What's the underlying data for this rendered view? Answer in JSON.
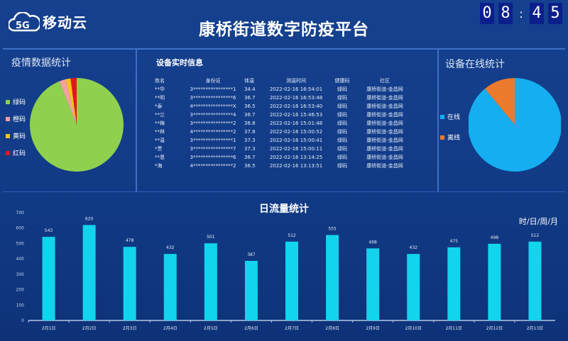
{
  "header": {
    "logo_text": "移动云",
    "logo_badge": "5G",
    "title": "康桥街道数字防疫平台",
    "clock": [
      "0",
      "8",
      ":",
      "4",
      "5"
    ]
  },
  "health_panel": {
    "title": "疫情数据统计",
    "colors": {
      "green": "#8fd14f",
      "orange": "#f4a0a0",
      "yellow": "#f5c518",
      "red": "#e8141c"
    },
    "legend": [
      "绿码",
      "橙码",
      "黄码",
      "红码"
    ],
    "slices": [
      {
        "label": "绿码",
        "value": 94,
        "color": "#8fd14f"
      },
      {
        "label": "橙码",
        "value": 2.3,
        "color": "#f4a0a0"
      },
      {
        "label": "黄码",
        "value": 1.6,
        "color": "#f5c518"
      },
      {
        "label": "红码",
        "value": 2.1,
        "color": "#e8141c"
      }
    ]
  },
  "device_panel": {
    "title": "设备实时信息",
    "headers": [
      "姓名",
      "身份证",
      "体温",
      "测温时间",
      "健康码",
      "社区"
    ],
    "rows": [
      [
        "**华",
        "3****************1",
        "34.4",
        "2022-02-16 16:54:01",
        "绿码",
        "康桥街道-金昌网"
      ],
      [
        "**明",
        "3****************6",
        "36.7",
        "2022-02-16 16:53:48",
        "绿码",
        "康桥街道-金昌网"
      ],
      [
        "*泰",
        "4****************X",
        "36.5",
        "2022-02-16 16:53:40",
        "绿码",
        "康桥街道-金昌网"
      ],
      [
        "**兰",
        "3****************4",
        "36.7",
        "2022-02-16 15:46:53",
        "绿码",
        "康桥街道-金昌网"
      ],
      [
        "**梅",
        "3****************2",
        "36.8",
        "2022-02-16 15:01:48",
        "绿码",
        "康桥街道-金昌网"
      ],
      [
        "**林",
        "4****************2",
        "37.8",
        "2022-02-16 15:00:52",
        "绿码",
        "康桥街道-金昌网"
      ],
      [
        "**温",
        "3****************1",
        "37.3",
        "2022-02-16 15:00:41",
        "绿码",
        "康桥街道-金昌网"
      ],
      [
        "*贾",
        "3****************7",
        "37.3",
        "2022-02-16 15:00:11",
        "绿码",
        "康桥街道-金昌网"
      ],
      [
        "**恩",
        "3****************6",
        "36.7",
        "2022-02-16 13:14:25",
        "绿码",
        "康桥街道-金昌网"
      ],
      [
        "*海",
        "4****************2",
        "36.5",
        "2022-02-16 13:13:51",
        "绿码",
        "康桥街道-金昌网"
      ]
    ]
  },
  "online_panel": {
    "title": "设备在线统计",
    "legend": [
      "在线",
      "离线"
    ],
    "slices": [
      {
        "label": "在线",
        "value": 89,
        "color": "#15aef0"
      },
      {
        "label": "离线",
        "value": 11,
        "color": "#ec7a2c"
      }
    ]
  },
  "chart_data": {
    "type": "bar",
    "title": "日流量统计",
    "period_selector": "时/日/周/月",
    "color": "#12d4ec",
    "categories": [
      "2月1日",
      "2月2日",
      "2月3日",
      "2月4日",
      "2月5日",
      "2月6日",
      "2月7日",
      "2月8日",
      "2月9日",
      "2月10日",
      "2月11日",
      "2月12日",
      "2月13日"
    ],
    "values": [
      543,
      620,
      478,
      432,
      501,
      387,
      512,
      555,
      468,
      432,
      475,
      498,
      512
    ],
    "ylim": [
      0,
      700
    ],
    "yticks": [
      0,
      100,
      200,
      300,
      400,
      500,
      600,
      700
    ],
    "grid": false
  }
}
